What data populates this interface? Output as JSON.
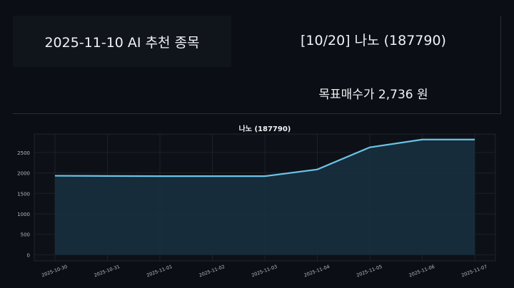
{
  "header": {
    "headline": "2025-11-10 AI 추천 종목",
    "stock": "[10/20] 나노 (187790)",
    "target": "목표매수가 2,736 원"
  },
  "chart_data": {
    "type": "area",
    "title": "나노 (187790)",
    "xlabel": "",
    "ylabel": "",
    "x": [
      "2025-10-30",
      "2025-10-31",
      "2025-11-01",
      "2025-11-02",
      "2025-11-03",
      "2025-11-04",
      "2025-11-05",
      "2025-11-06",
      "2025-11-07"
    ],
    "series": [
      {
        "values": [
          1930,
          1925,
          1920,
          1920,
          1920,
          2085,
          2625,
          2815,
          2815
        ]
      }
    ],
    "yticks": [
      0,
      500,
      1000,
      1500,
      2000,
      2500
    ],
    "ylim": [
      -150,
      2950
    ],
    "grid": true,
    "colors": {
      "line": "#6cc3e6",
      "fill": "#17303f",
      "plot_bg": "#0d1117"
    }
  }
}
